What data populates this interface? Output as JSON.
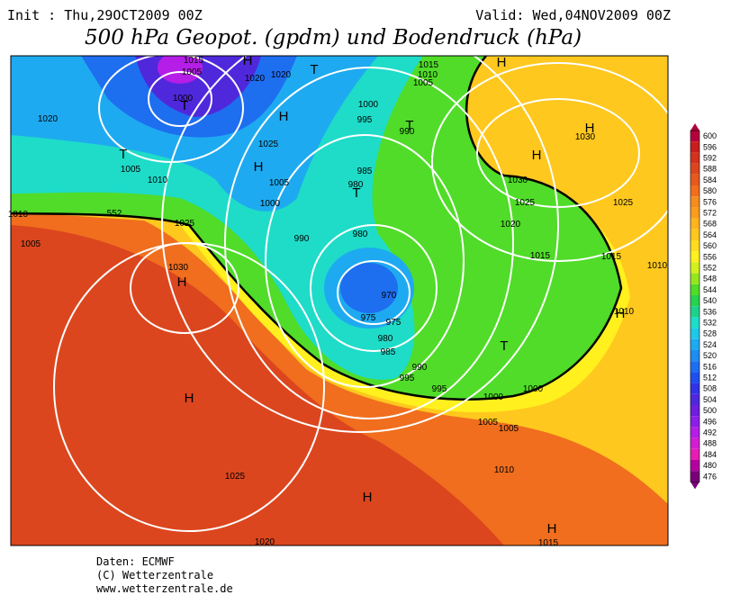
{
  "header": {
    "init": "Init : Thu,29OCT2009 00Z",
    "valid": "Valid: Wed,04NOV2009 00Z",
    "title": "500 hPa Geopot. (gpdm) und Bodendruck (hPa)"
  },
  "colorbar": {
    "labels": [
      600,
      596,
      592,
      588,
      584,
      580,
      576,
      572,
      568,
      564,
      560,
      556,
      552,
      548,
      544,
      540,
      536,
      532,
      528,
      524,
      520,
      516,
      512,
      508,
      504,
      500,
      496,
      492,
      488,
      484,
      480,
      476
    ],
    "colors": [
      "#b4003c",
      "#c81e1e",
      "#d2321e",
      "#dc461e",
      "#e65a1e",
      "#f06e1e",
      "#f58c1e",
      "#fa9c1e",
      "#ffb41e",
      "#ffc81e",
      "#ffdc1e",
      "#fff01e",
      "#d2f01e",
      "#96e61e",
      "#50dc28",
      "#28d250",
      "#1ed28c",
      "#1edcc8",
      "#1ec8e6",
      "#1eaaf0",
      "#1e8cf0",
      "#1e6ef0",
      "#1e50f0",
      "#3232e6",
      "#5028dc",
      "#6e1edc",
      "#8c1ee6",
      "#b41ee6",
      "#d21ed2",
      "#e61eb4",
      "#b400a0",
      "#780078"
    ]
  },
  "map_labels": [
    "1015",
    "1005",
    "1000",
    "T",
    "1020",
    "T",
    "1005",
    "1010",
    "H",
    "1020",
    "1020",
    "T",
    "H",
    "1025",
    "H",
    "1005",
    "1000",
    "1025",
    "1015",
    "1010",
    "1005",
    "1000",
    "995",
    "T",
    "990",
    "985",
    "980",
    "T",
    "990",
    "980",
    "1030",
    "H",
    "970",
    "975",
    "975",
    "980",
    "985",
    "990",
    "995",
    "995",
    "1000",
    "1005",
    "1005",
    "T",
    "1000",
    "H",
    "1025",
    "H",
    "1010",
    "1015",
    "H",
    "1020",
    "H",
    "H",
    "1030",
    "H",
    "1030",
    "1025",
    "1020",
    "1015",
    "1015",
    "1025",
    "1010",
    "1010",
    "H",
    "1005",
    "1010",
    "552"
  ],
  "footer": [
    "Daten: ECMWF",
    "(C) Wetterzentrale",
    "www.wetterzentrale.de"
  ]
}
